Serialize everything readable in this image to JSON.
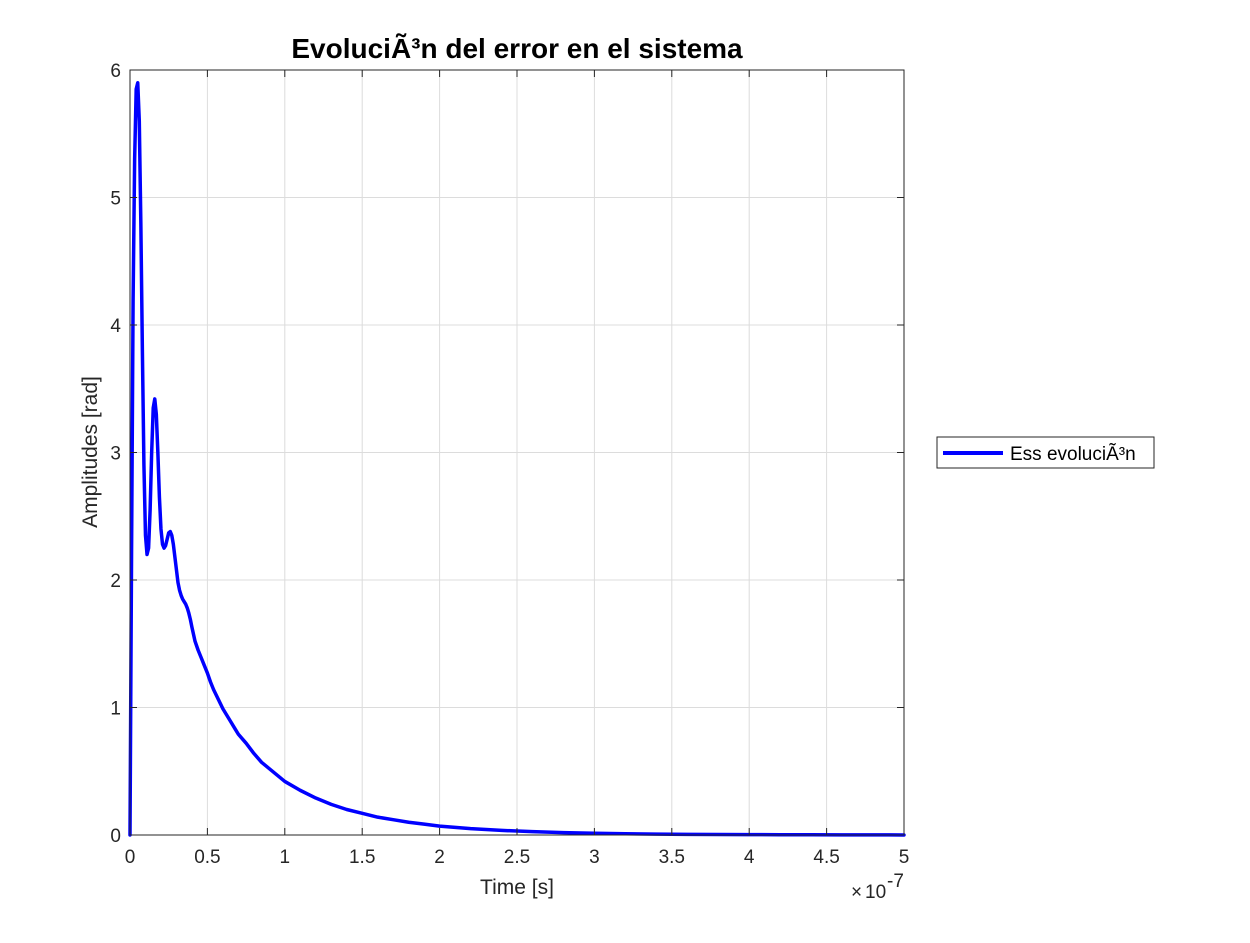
{
  "chart_data": {
    "type": "line",
    "title": "EvoluciÃ³n del error en el sistema",
    "xlabel": "Time [s]",
    "ylabel": "Amplitudes [rad]",
    "x_exponent_label": "10",
    "x_exponent_power": "-7",
    "x_exponent_times": "×",
    "xlim": [
      0,
      5
    ],
    "ylim": [
      0,
      6
    ],
    "x_ticks": [
      0,
      0.5,
      1,
      1.5,
      2,
      2.5,
      3,
      3.5,
      4,
      4.5,
      5
    ],
    "x_tick_labels": [
      "0",
      "0.5",
      "1",
      "1.5",
      "2",
      "2.5",
      "3",
      "3.5",
      "4",
      "4.5",
      "5"
    ],
    "y_ticks": [
      0,
      1,
      2,
      3,
      4,
      5,
      6
    ],
    "y_tick_labels": [
      "0",
      "1",
      "2",
      "3",
      "4",
      "5",
      "6"
    ],
    "grid": true,
    "legend_position": "outside-right",
    "series": [
      {
        "name": "Ess evoluciÃ³n",
        "color": "#0000ff",
        "x": [
          0,
          0.01,
          0.02,
          0.03,
          0.04,
          0.05,
          0.06,
          0.07,
          0.08,
          0.09,
          0.1,
          0.11,
          0.12,
          0.13,
          0.14,
          0.15,
          0.16,
          0.17,
          0.18,
          0.19,
          0.2,
          0.21,
          0.22,
          0.23,
          0.24,
          0.25,
          0.26,
          0.27,
          0.28,
          0.29,
          0.3,
          0.31,
          0.32,
          0.33,
          0.34,
          0.35,
          0.36,
          0.37,
          0.38,
          0.39,
          0.4,
          0.42,
          0.44,
          0.46,
          0.48,
          0.5,
          0.52,
          0.54,
          0.56,
          0.58,
          0.6,
          0.62,
          0.65,
          0.68,
          0.7,
          0.75,
          0.8,
          0.85,
          0.9,
          0.95,
          1.0,
          1.1,
          1.2,
          1.3,
          1.4,
          1.5,
          1.6,
          1.7,
          1.8,
          1.9,
          2.0,
          2.2,
          2.4,
          2.6,
          2.8,
          3.0,
          3.2,
          3.4,
          3.6,
          3.8,
          4.0,
          4.2,
          4.4,
          4.6,
          4.8,
          5.0
        ],
        "y": [
          0,
          2.2,
          4.2,
          5.3,
          5.85,
          5.9,
          5.6,
          4.8,
          3.8,
          2.9,
          2.35,
          2.2,
          2.25,
          2.55,
          3.0,
          3.35,
          3.42,
          3.3,
          3.0,
          2.65,
          2.4,
          2.28,
          2.25,
          2.27,
          2.32,
          2.37,
          2.38,
          2.35,
          2.28,
          2.18,
          2.08,
          1.98,
          1.92,
          1.88,
          1.85,
          1.83,
          1.81,
          1.78,
          1.74,
          1.69,
          1.63,
          1.52,
          1.45,
          1.39,
          1.33,
          1.27,
          1.2,
          1.14,
          1.09,
          1.04,
          0.99,
          0.95,
          0.89,
          0.83,
          0.79,
          0.72,
          0.64,
          0.57,
          0.52,
          0.47,
          0.42,
          0.35,
          0.29,
          0.24,
          0.2,
          0.17,
          0.14,
          0.12,
          0.1,
          0.085,
          0.07,
          0.05,
          0.036,
          0.026,
          0.019,
          0.014,
          0.01,
          0.007,
          0.005,
          0.004,
          0.003,
          0.002,
          0.0015,
          0.001,
          0.0007,
          0.0005
        ]
      }
    ]
  }
}
